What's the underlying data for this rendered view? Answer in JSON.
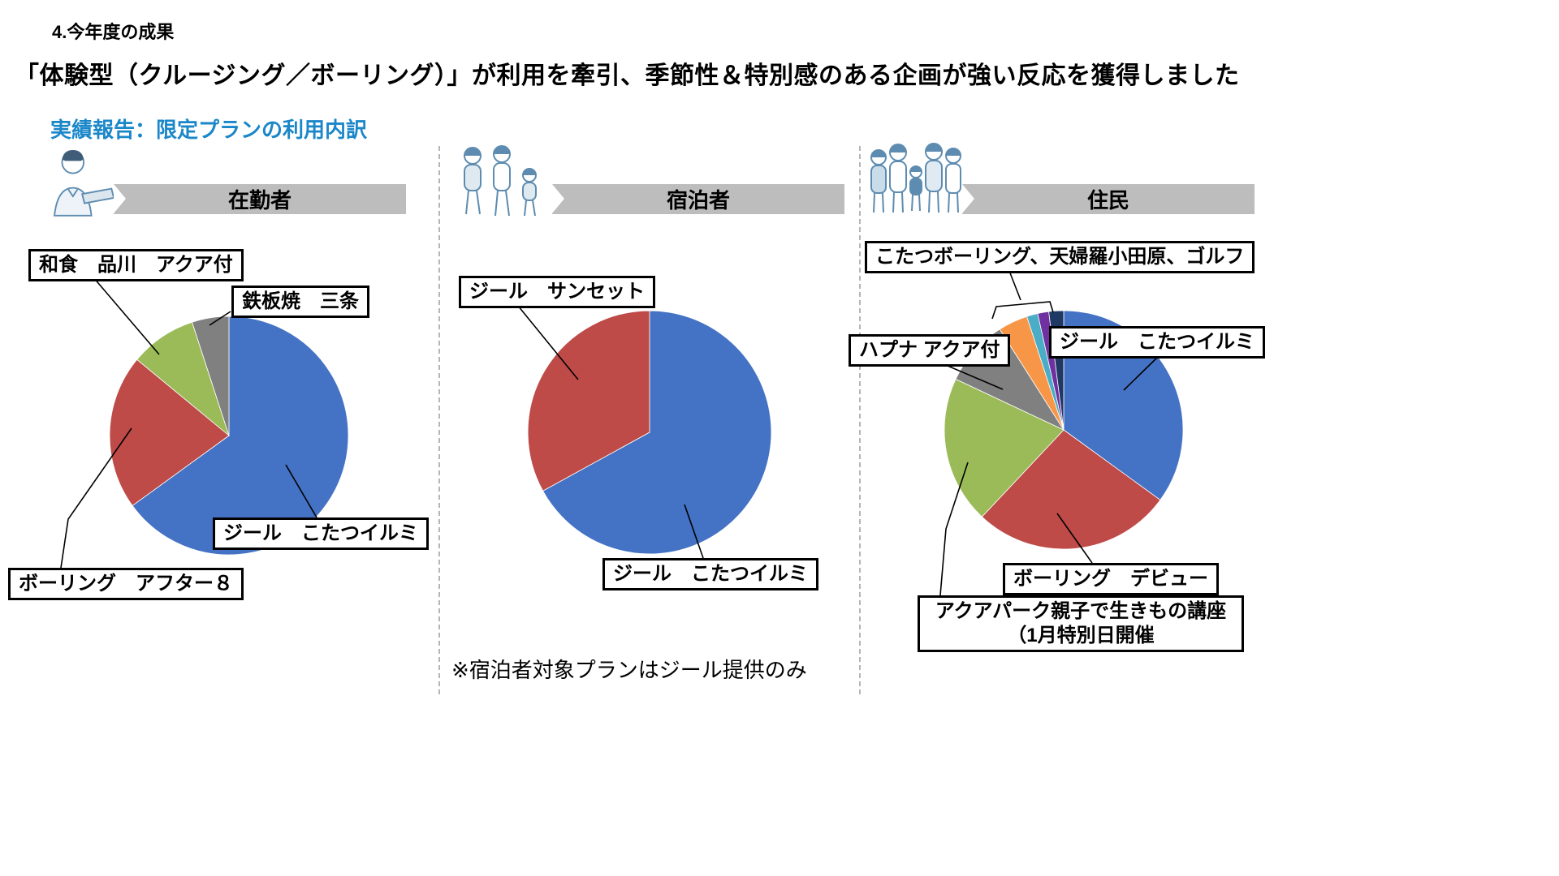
{
  "page": {
    "section_label": "4.今年度の成果",
    "headline": "「体験型（クルージング／ボーリング）」が利用を牽引、季節性＆特別感のある企画が強い反応を獲得しました",
    "subtitle": "実績報告：限定プランの利用内訳",
    "footnote": "※宿泊者対象プランはジール提供のみ"
  },
  "colors": {
    "slice_blue": "#4472C4",
    "slice_red": "#BE4B48",
    "slice_green": "#9BBB59",
    "slice_gray": "#808080",
    "slice_orange": "#F79646",
    "slice_lightblue": "#4BACC6",
    "slice_purple": "#7030A0",
    "slice_darkblue": "#1F3864",
    "subtitle_blue": "#1B87C9",
    "banner_gray": "#BDBDBD"
  },
  "illustrations": {
    "zaikinsha": "person-with-laptop",
    "shukuhakusha": "family-walking",
    "jumin": "group-of-residents"
  },
  "chart_data": [
    {
      "type": "pie",
      "title": "在勤者",
      "legend_position": "callout-boxes",
      "slices": [
        {
          "label": "ジール　こたつイルミ",
          "value": 65,
          "color": "#4472C4"
        },
        {
          "label": "ボーリング　アフター８",
          "value": 21,
          "color": "#BE4B48"
        },
        {
          "label": "和食　品川　アクア付",
          "value": 9,
          "color": "#9BBB59"
        },
        {
          "label": "鉄板焼　三条",
          "value": 5,
          "color": "#808080"
        }
      ]
    },
    {
      "type": "pie",
      "title": "宿泊者",
      "legend_position": "callout-boxes",
      "slices": [
        {
          "label": "ジール　こたつイルミ",
          "value": 67,
          "color": "#4472C4"
        },
        {
          "label": "ジール　サンセット",
          "value": 33,
          "color": "#BE4B48"
        }
      ]
    },
    {
      "type": "pie",
      "title": "住民",
      "legend_position": "callout-boxes",
      "group_annotation": "こたつボーリング、天婦羅小田原、ゴルフ",
      "slices": [
        {
          "label": "ジール　こたつイルミ",
          "value": 35,
          "color": "#4472C4"
        },
        {
          "label": "ボーリング　デビュー",
          "value": 27,
          "color": "#BE4B48"
        },
        {
          "label": "アクアパーク親子で生きもの講座",
          "label2": "（1月特別日開催",
          "value": 20,
          "color": "#9BBB59"
        },
        {
          "label": "ハプナ アクア付",
          "value": 9,
          "color": "#808080"
        },
        {
          "label": "",
          "value": 4,
          "color": "#F79646"
        },
        {
          "label": "",
          "value": 1.5,
          "color": "#4BACC6"
        },
        {
          "label": "",
          "value": 1.5,
          "color": "#7030A0"
        },
        {
          "label": "",
          "value": 2,
          "color": "#1F3864"
        }
      ]
    }
  ]
}
